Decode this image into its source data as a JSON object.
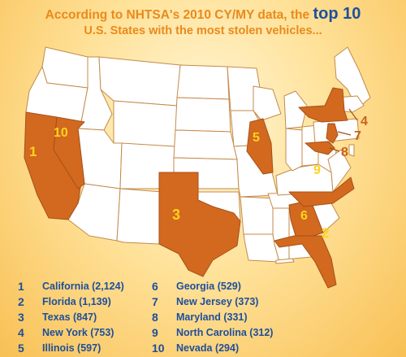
{
  "header": {
    "line1_prefix": "According to NHTSA's 2010 CY/MY data, the ",
    "line1_highlight": "top 10",
    "line2": "U.S. States with the most stolen vehicles..."
  },
  "map": {
    "state_fill": "#ffffff",
    "highlight_fill": "#d2691e",
    "border_color": "#c48a4a",
    "label_color_inside": "#ffd21e",
    "label_color_outside": "#c8641e",
    "labels": {
      "california": "1",
      "florida": "2",
      "texas": "3",
      "new_york": "4",
      "illinois": "5",
      "georgia": "6",
      "new_jersey": "7",
      "maryland": "8",
      "north_carolina": "9",
      "nevada": "10"
    }
  },
  "list": {
    "left": [
      {
        "rank": "1",
        "text": "California (2,124)"
      },
      {
        "rank": "2",
        "text": "Florida (1,139)"
      },
      {
        "rank": "3",
        "text": "Texas (847)"
      },
      {
        "rank": "4",
        "text": "New York (753)"
      },
      {
        "rank": "5",
        "text": "Illinois (597)"
      }
    ],
    "right": [
      {
        "rank": "6",
        "text": "Georgia (529)"
      },
      {
        "rank": "7",
        "text": "New Jersey (373)"
      },
      {
        "rank": "8",
        "text": "Maryland (331)"
      },
      {
        "rank": "9",
        "text": "North Carolina (312)"
      },
      {
        "rank": "10",
        "text": "Nevada (294)"
      }
    ]
  }
}
